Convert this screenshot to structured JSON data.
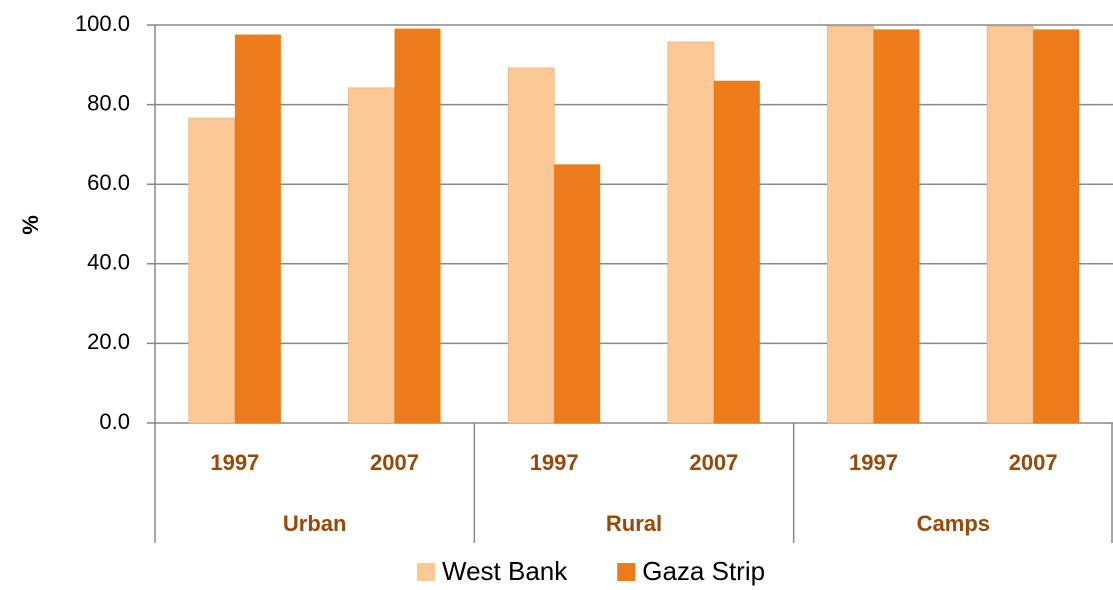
{
  "chart_data": {
    "type": "bar",
    "y_label": "%",
    "categories": [
      "1997",
      "2007",
      "1997",
      "2007",
      "1997",
      "2007"
    ],
    "groups": [
      "Urban",
      "Rural",
      "Camps"
    ],
    "series": [
      {
        "name": "West Bank",
        "color": "#fcc896",
        "values": [
          76.6,
          84.2,
          89.2,
          95.7,
          99.7,
          99.7
        ]
      },
      {
        "name": "Gaza Strip",
        "color": "#ee7b1b",
        "values": [
          97.6,
          99.1,
          65.0,
          86.0,
          98.9,
          98.9
        ]
      }
    ],
    "ylim": [
      0,
      100
    ],
    "yticks": [
      {
        "value": 0,
        "label": "0.0"
      },
      {
        "value": 20,
        "label": "20.0"
      },
      {
        "value": 40,
        "label": "40.0"
      },
      {
        "value": 60,
        "label": "60.0"
      },
      {
        "value": 80,
        "label": "80.0"
      },
      {
        "value": 100,
        "label": "100.0"
      }
    ],
    "grid": true,
    "legend": "bottom"
  }
}
